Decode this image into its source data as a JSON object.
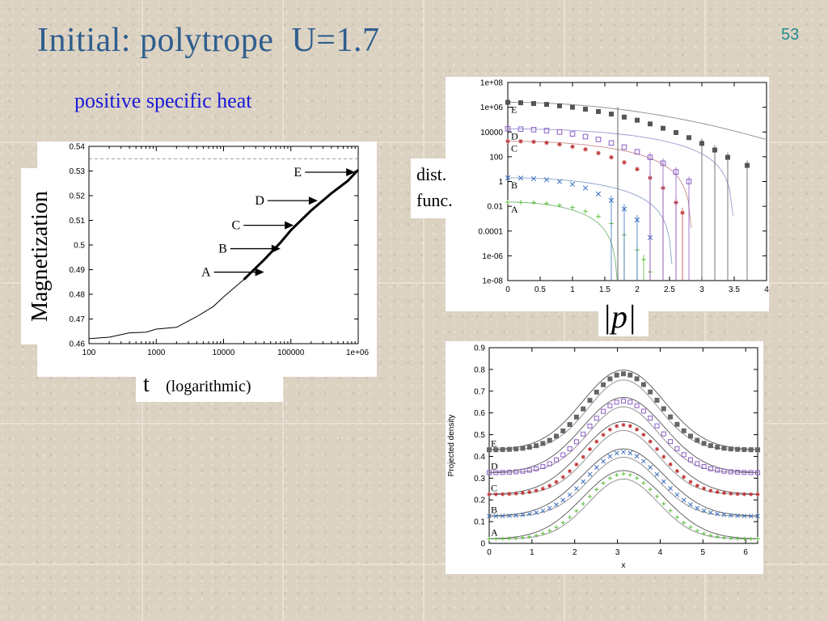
{
  "slide": {
    "title": "Initial: polytrope  U=1.7",
    "page_number": "53",
    "subtitle": "positive specific heat"
  },
  "labels": {
    "magnetization": "Magnetization",
    "t": "t",
    "logarithmic": "(logarithmic)",
    "dist_line1": "dist.",
    "dist_line2": "func.",
    "abs_p": "|p|"
  },
  "chart_data": [
    {
      "type": "line",
      "ylabel": "Magnetization",
      "xlabel": "t (logarithmic)",
      "xscale": "log",
      "xlim": [
        100,
        1000000
      ],
      "ylim": [
        0.46,
        0.54
      ],
      "xticks": [
        "100",
        "1000",
        "10000",
        "100000",
        "1e+06"
      ],
      "yticks": [
        "0.46",
        "0.47",
        "0.48",
        "0.49",
        "0.5",
        "0.51",
        "0.52",
        "0.53",
        "0.54"
      ],
      "reference_line_y": 0.535,
      "series": [
        {
          "x": [
            100,
            200,
            400,
            700,
            1000,
            2000,
            4000,
            7000,
            10000,
            20000,
            40000,
            70000,
            100000,
            200000,
            400000,
            700000,
            1000000
          ],
          "values": [
            0.462,
            0.463,
            0.464,
            0.465,
            0.4655,
            0.467,
            0.471,
            0.475,
            0.479,
            0.486,
            0.494,
            0.501,
            0.506,
            0.514,
            0.521,
            0.526,
            0.5305
          ]
        }
      ],
      "annotations": [
        {
          "label": "A",
          "x": 40000,
          "y": 0.489
        },
        {
          "label": "B",
          "x": 70000,
          "y": 0.4985
        },
        {
          "label": "C",
          "x": 110000,
          "y": 0.508
        },
        {
          "label": "D",
          "x": 250000,
          "y": 0.518
        },
        {
          "label": "E",
          "x": 900000,
          "y": 0.5295
        }
      ]
    },
    {
      "type": "scatter",
      "xlabel": "|p|",
      "ylabel": "dist. func.",
      "yscale": "log",
      "xlim": [
        0,
        4
      ],
      "ylim": [
        1e-08,
        100000000.0
      ],
      "xticks": [
        "0",
        "0.5",
        "1",
        "1.5",
        "2",
        "2.5",
        "3",
        "3.5",
        "4"
      ],
      "yticks": [
        "1e-08",
        "1e-06",
        "0.0001",
        "0.01",
        "1",
        "100",
        "10000",
        "1e+06",
        "1e+08"
      ],
      "series": [
        {
          "name": "A",
          "color": "#5bbf3a",
          "marker": "plus",
          "x": [
            0,
            0.2,
            0.4,
            0.6,
            0.8,
            1.0,
            1.2,
            1.4,
            1.6,
            1.8,
            2.0,
            2.1,
            2.2
          ],
          "values": [
            0.022,
            0.021,
            0.02,
            0.017,
            0.012,
            0.008,
            0.004,
            0.0015,
            0.0004,
            5e-05,
            3e-06,
            5e-07,
            5e-08
          ]
        },
        {
          "name": "B",
          "color": "#3a6fbf",
          "marker": "x",
          "x": [
            0,
            0.2,
            0.4,
            0.6,
            0.8,
            1.0,
            1.2,
            1.4,
            1.6,
            1.8,
            2.0,
            2.2
          ],
          "values": [
            2,
            1.9,
            1.7,
            1.4,
            1,
            0.6,
            0.3,
            0.1,
            0.03,
            0.006,
            0.0008,
            3e-05
          ]
        },
        {
          "name": "C",
          "color": "#c03838",
          "marker": "asterisk",
          "x": [
            0,
            0.2,
            0.4,
            0.6,
            0.8,
            1.0,
            1.2,
            1.4,
            1.6,
            1.8,
            2.0,
            2.2,
            2.4,
            2.6,
            2.7
          ],
          "values": [
            1800,
            1750,
            1600,
            1350,
            1000,
            650,
            400,
            200,
            90,
            35,
            10,
            2,
            0.3,
            0.02,
            0.003
          ]
        },
        {
          "name": "D",
          "color": "#8a5cc8",
          "marker": "square-open",
          "x": [
            0,
            0.2,
            0.4,
            0.6,
            0.8,
            1.0,
            1.2,
            1.4,
            1.6,
            1.8,
            2.0,
            2.2,
            2.4,
            2.6,
            2.8
          ],
          "values": [
            18000,
            17000,
            15500,
            13000,
            10000,
            7000,
            4200,
            2500,
            1300,
            600,
            250,
            90,
            30,
            6,
            1
          ]
        },
        {
          "name": "E",
          "color": "#555555",
          "marker": "square-filled",
          "x": [
            0,
            0.2,
            0.4,
            0.6,
            0.8,
            1.0,
            1.2,
            1.4,
            1.6,
            1.8,
            2.0,
            2.2,
            2.4,
            2.6,
            2.8,
            3.0,
            3.2,
            3.4,
            3.7
          ],
          "values": [
            2500000,
            2300000,
            2000000,
            1700000,
            1300000,
            1000000,
            700000,
            450000,
            280000,
            160000,
            90000,
            45000,
            20000,
            9000,
            3500,
            1200,
            350,
            90,
            20
          ]
        }
      ],
      "annotations": [
        "A",
        "B",
        "C",
        "D",
        "E"
      ]
    },
    {
      "type": "scatter",
      "xlabel": "x",
      "ylabel": "Projected density",
      "xlim": [
        0,
        6.28
      ],
      "ylim": [
        0,
        0.9
      ],
      "xticks": [
        "0",
        "1",
        "2",
        "3",
        "4",
        "5",
        "6"
      ],
      "yticks": [
        "0",
        "0.1",
        "0.2",
        "0.3",
        "0.4",
        "0.5",
        "0.6",
        "0.7",
        "0.8",
        "0.9"
      ],
      "series": [
        {
          "name": "A",
          "color": "#5bbf3a",
          "marker": "plus",
          "baseline": 0.02,
          "peak": 0.32
        },
        {
          "name": "B",
          "color": "#3a6fbf",
          "marker": "x",
          "baseline": 0.125,
          "peak": 0.42
        },
        {
          "name": "C",
          "color": "#c03838",
          "marker": "asterisk",
          "baseline": 0.225,
          "peak": 0.545
        },
        {
          "name": "D",
          "color": "#8a5cc8",
          "marker": "square-open",
          "baseline": 0.325,
          "peak": 0.655
        },
        {
          "name": "E",
          "color": "#666666",
          "marker": "square-filled",
          "baseline": 0.43,
          "peak": 0.78
        }
      ],
      "annotations": [
        "A",
        "B",
        "C",
        "D",
        "E"
      ]
    }
  ]
}
